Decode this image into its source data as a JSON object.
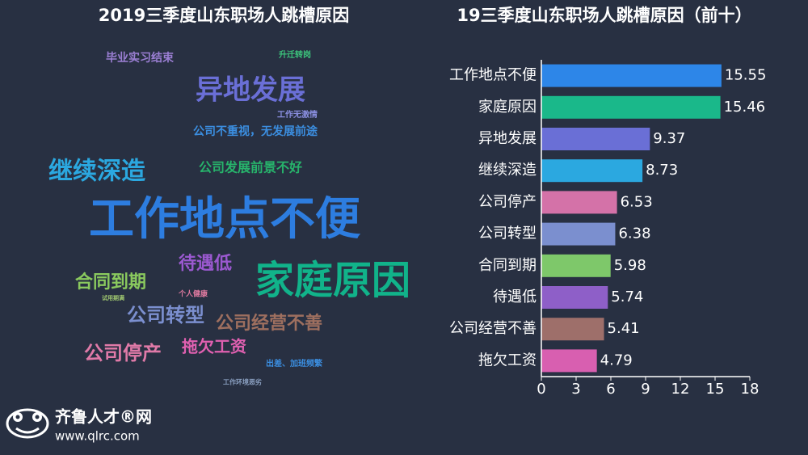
{
  "chart_data": [
    {
      "type": "wordcloud",
      "title": "2019三季度山东职场人跳槽原因",
      "words": [
        {
          "text": "毕业实习结束",
          "color": "#9b7fd4"
        },
        {
          "text": "升迁转岗",
          "color": "#3cc47c"
        },
        {
          "text": "异地发展",
          "color": "#6a6fd6"
        },
        {
          "text": "工作无激情",
          "color": "#8a8fe0"
        },
        {
          "text": "公司不重视，无发展前途",
          "color": "#3b8ee0"
        },
        {
          "text": "继续深造",
          "color": "#2ba8e0"
        },
        {
          "text": "公司发展前景不好",
          "color": "#27b36b"
        },
        {
          "text": "工作地点不便",
          "color": "#2d7de0"
        },
        {
          "text": "待遇低",
          "color": "#9b59d0"
        },
        {
          "text": "家庭原因",
          "color": "#11b38a"
        },
        {
          "text": "合同到期",
          "color": "#8ac95e"
        },
        {
          "text": "个人健康",
          "color": "#e07aa0"
        },
        {
          "text": "试用期满",
          "color": "#a0c870"
        },
        {
          "text": "公司转型",
          "color": "#7b8fcf"
        },
        {
          "text": "公司经营不善",
          "color": "#9e6f5f"
        },
        {
          "text": "公司停产",
          "color": "#e07aa8"
        },
        {
          "text": "拖欠工资",
          "color": "#e060b0"
        },
        {
          "text": "出差、加班频繁",
          "color": "#3b8ee0"
        },
        {
          "text": "工作环境恶劣",
          "color": "#8a9fc0"
        }
      ]
    },
    {
      "type": "barh",
      "title": "19三季度山东职场人跳槽原因（前十）",
      "categories": [
        "工作地点不便",
        "家庭原因",
        "异地发展",
        "继续深造",
        "公司停产",
        "公司转型",
        "合同到期",
        "待遇低",
        "公司经营不善",
        "拖欠工资"
      ],
      "values": [
        15.55,
        15.46,
        9.37,
        8.73,
        6.53,
        6.38,
        5.98,
        5.74,
        5.41,
        4.79
      ],
      "colors": [
        "#2d86e8",
        "#1ab88a",
        "#6a6fd6",
        "#2ba8e0",
        "#d472a8",
        "#7b8fcf",
        "#7ec86a",
        "#8e5fc8",
        "#9e6f6a",
        "#d85fb0"
      ],
      "xlim": [
        0,
        18
      ],
      "xticks": [
        0,
        3,
        6,
        9,
        12,
        15,
        18
      ]
    }
  ],
  "logo": {
    "name": "齐鲁人才®网",
    "url": "www.qlrc.com"
  }
}
